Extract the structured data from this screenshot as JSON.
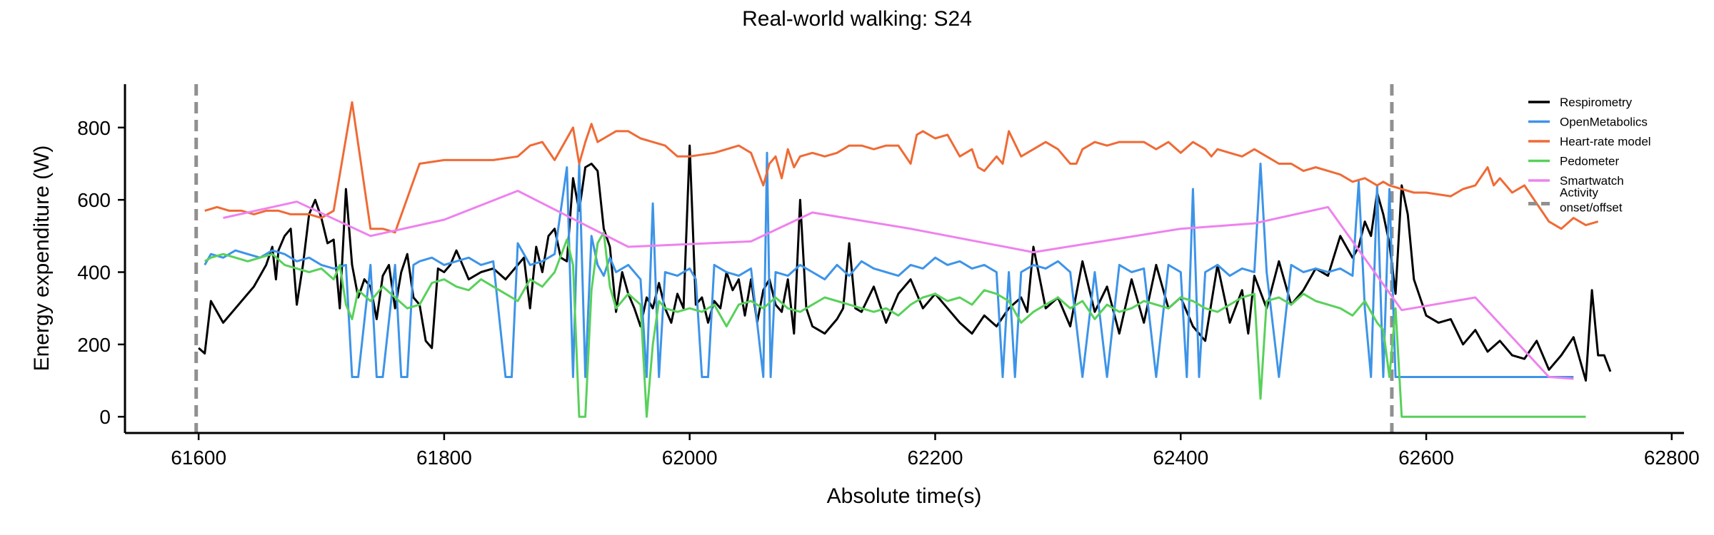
{
  "chart_data": {
    "type": "line",
    "title": "Real-world walking: S24",
    "xlabel": "Absolute time(s)",
    "ylabel": "Energy expenditure (W)",
    "xlim": [
      61540,
      62810
    ],
    "ylim": [
      -45,
      920
    ],
    "xticks": [
      61600,
      61800,
      62000,
      62200,
      62400,
      62600,
      62800
    ],
    "yticks": [
      0,
      200,
      400,
      600,
      800
    ],
    "grid": false,
    "legend_position": "top-right",
    "series": [
      {
        "name": "Respirometry",
        "color": "#000000",
        "x": [
          61600,
          61605,
          61610,
          61620,
          61630,
          61640,
          61645,
          61650,
          61655,
          61660,
          61663,
          61665,
          61670,
          61675,
          61680,
          61685,
          61690,
          61695,
          61700,
          61705,
          61710,
          61715,
          61720,
          61725,
          61730,
          61735,
          61740,
          61745,
          61750,
          61755,
          61760,
          61765,
          61770,
          61775,
          61780,
          61785,
          61790,
          61795,
          61800,
          61805,
          61810,
          61815,
          61820,
          61830,
          61840,
          61850,
          61860,
          61865,
          61870,
          61875,
          61880,
          61885,
          61890,
          61895,
          61900,
          61905,
          61910,
          61915,
          61920,
          61925,
          61930,
          61935,
          61940,
          61945,
          61950,
          61955,
          61960,
          61965,
          61970,
          61975,
          61980,
          61985,
          61990,
          61995,
          62000,
          62005,
          62010,
          62015,
          62020,
          62025,
          62030,
          62035,
          62040,
          62045,
          62050,
          62055,
          62060,
          62065,
          62070,
          62075,
          62080,
          62085,
          62090,
          62095,
          62100,
          62110,
          62120,
          62125,
          62130,
          62135,
          62140,
          62150,
          62160,
          62170,
          62180,
          62190,
          62200,
          62210,
          62220,
          62230,
          62240,
          62250,
          62260,
          62270,
          62275,
          62280,
          62290,
          62300,
          62310,
          62320,
          62330,
          62340,
          62350,
          62360,
          62370,
          62380,
          62390,
          62400,
          62410,
          62420,
          62430,
          62440,
          62450,
          62455,
          62460,
          62470,
          62480,
          62490,
          62500,
          62510,
          62520,
          62530,
          62540,
          62545,
          62550,
          62555,
          62560,
          62565,
          62570,
          62575,
          62580,
          62585,
          62590,
          62600,
          62610,
          62620,
          62630,
          62640,
          62650,
          62660,
          62670,
          62680,
          62690,
          62700,
          62710,
          62720,
          62725,
          62730,
          62735,
          62740,
          62745,
          62750
        ],
        "values": [
          190,
          175,
          320,
          260,
          300,
          340,
          360,
          390,
          420,
          470,
          380,
          460,
          500,
          520,
          310,
          420,
          560,
          600,
          550,
          480,
          490,
          300,
          630,
          420,
          330,
          380,
          360,
          270,
          390,
          420,
          300,
          400,
          450,
          330,
          310,
          210,
          190,
          410,
          400,
          420,
          460,
          420,
          380,
          400,
          410,
          380,
          420,
          440,
          300,
          470,
          400,
          500,
          520,
          440,
          430,
          660,
          570,
          690,
          700,
          680,
          520,
          470,
          290,
          400,
          340,
          300,
          250,
          330,
          300,
          370,
          300,
          260,
          340,
          300,
          750,
          310,
          330,
          260,
          320,
          300,
          400,
          350,
          380,
          280,
          380,
          260,
          350,
          380,
          310,
          290,
          380,
          230,
          600,
          300,
          250,
          230,
          270,
          300,
          480,
          300,
          290,
          360,
          260,
          340,
          380,
          300,
          340,
          300,
          260,
          230,
          280,
          250,
          300,
          330,
          290,
          470,
          300,
          330,
          250,
          430,
          290,
          360,
          230,
          380,
          260,
          420,
          300,
          330,
          250,
          210,
          420,
          260,
          350,
          230,
          390,
          300,
          430,
          310,
          350,
          410,
          390,
          500,
          440,
          470,
          540,
          500,
          620,
          560,
          480,
          340,
          640,
          560,
          380,
          280,
          260,
          270,
          200,
          240,
          180,
          210,
          170,
          160,
          210,
          130,
          170,
          220,
          160,
          100,
          350,
          170,
          170,
          125
        ]
      },
      {
        "name": "OpenMetabolics",
        "color": "#3d94e8",
        "x": [
          61605,
          61610,
          61620,
          61630,
          61640,
          61650,
          61660,
          61670,
          61680,
          61690,
          61700,
          61710,
          61720,
          61725,
          61730,
          61740,
          61745,
          61750,
          61760,
          61765,
          61770,
          61775,
          61780,
          61790,
          61800,
          61810,
          61820,
          61830,
          61840,
          61850,
          61855,
          61860,
          61870,
          61880,
          61890,
          61900,
          61905,
          61910,
          61915,
          61920,
          61925,
          61930,
          61935,
          61940,
          61950,
          61960,
          61965,
          61970,
          61975,
          61980,
          61990,
          62000,
          62005,
          62010,
          62015,
          62020,
          62030,
          62040,
          62050,
          62060,
          62063,
          62066,
          62070,
          62080,
          62090,
          62100,
          62110,
          62120,
          62130,
          62140,
          62150,
          62160,
          62170,
          62180,
          62190,
          62200,
          62210,
          62220,
          62230,
          62240,
          62250,
          62255,
          62260,
          62265,
          62270,
          62280,
          62290,
          62300,
          62310,
          62320,
          62330,
          62340,
          62350,
          62360,
          62370,
          62380,
          62390,
          62400,
          62405,
          62410,
          62415,
          62420,
          62430,
          62440,
          62450,
          62460,
          62465,
          62470,
          62480,
          62490,
          62500,
          62510,
          62520,
          62530,
          62540,
          62545,
          62550,
          62555,
          62560,
          62565,
          62570,
          62575,
          62580,
          62585,
          62590,
          62600,
          62650,
          62700,
          62720
        ],
        "values": [
          420,
          450,
          440,
          460,
          450,
          440,
          460,
          450,
          430,
          440,
          420,
          410,
          420,
          110,
          110,
          420,
          110,
          110,
          420,
          110,
          110,
          420,
          430,
          440,
          420,
          430,
          440,
          420,
          430,
          110,
          110,
          480,
          420,
          430,
          450,
          690,
          110,
          700,
          110,
          500,
          420,
          390,
          440,
          400,
          420,
          380,
          110,
          590,
          110,
          400,
          390,
          410,
          380,
          110,
          110,
          420,
          400,
          390,
          410,
          110,
          730,
          110,
          400,
          390,
          420,
          400,
          380,
          420,
          390,
          430,
          410,
          400,
          390,
          420,
          410,
          440,
          420,
          430,
          410,
          420,
          400,
          110,
          400,
          110,
          400,
          420,
          410,
          430,
          400,
          110,
          400,
          110,
          420,
          400,
          410,
          110,
          420,
          400,
          110,
          630,
          110,
          400,
          420,
          390,
          410,
          400,
          700,
          400,
          110,
          420,
          400,
          410,
          400,
          410,
          390,
          650,
          300,
          110,
          640,
          110,
          630,
          110,
          110,
          110,
          110,
          110,
          110,
          110,
          110
        ]
      },
      {
        "name": "Heart-rate model",
        "color": "#f06a35",
        "x": [
          61605,
          61615,
          61625,
          61635,
          61645,
          61655,
          61665,
          61675,
          61690,
          61700,
          61710,
          61725,
          61740,
          61750,
          61760,
          61780,
          61800,
          61820,
          61840,
          61860,
          61870,
          61880,
          61890,
          61900,
          61905,
          61910,
          61915,
          61920,
          61925,
          61930,
          61940,
          61950,
          61960,
          61970,
          61980,
          61990,
          62000,
          62020,
          62030,
          62040,
          62050,
          62060,
          62065,
          62070,
          62075,
          62080,
          62085,
          62090,
          62100,
          62110,
          62120,
          62130,
          62140,
          62150,
          62160,
          62170,
          62180,
          62185,
          62190,
          62200,
          62210,
          62220,
          62230,
          62235,
          62240,
          62250,
          62255,
          62260,
          62270,
          62280,
          62290,
          62300,
          62310,
          62315,
          62320,
          62330,
          62340,
          62350,
          62360,
          62370,
          62380,
          62390,
          62400,
          62410,
          62420,
          62425,
          62430,
          62440,
          62450,
          62460,
          62470,
          62480,
          62490,
          62500,
          62510,
          62520,
          62530,
          62540,
          62550,
          62560,
          62565,
          62570,
          62580,
          62590,
          62600,
          62620,
          62630,
          62640,
          62650,
          62655,
          62660,
          62670,
          62680,
          62690,
          62700,
          62710,
          62720,
          62730,
          62740
        ],
        "values": [
          570,
          580,
          570,
          570,
          560,
          570,
          570,
          560,
          560,
          550,
          570,
          870,
          520,
          520,
          510,
          700,
          710,
          710,
          710,
          720,
          750,
          760,
          710,
          770,
          800,
          700,
          760,
          810,
          760,
          770,
          790,
          790,
          770,
          760,
          750,
          720,
          720,
          730,
          740,
          750,
          730,
          640,
          700,
          720,
          660,
          740,
          690,
          720,
          730,
          720,
          730,
          750,
          750,
          740,
          750,
          750,
          700,
          780,
          790,
          770,
          780,
          720,
          740,
          690,
          680,
          720,
          700,
          790,
          720,
          740,
          760,
          740,
          700,
          700,
          740,
          760,
          750,
          760,
          760,
          760,
          740,
          760,
          730,
          760,
          740,
          720,
          740,
          730,
          720,
          740,
          720,
          700,
          700,
          680,
          690,
          680,
          670,
          650,
          660,
          640,
          650,
          640,
          630,
          620,
          620,
          610,
          630,
          640,
          690,
          640,
          660,
          620,
          640,
          590,
          540,
          520,
          550,
          530,
          540
        ]
      },
      {
        "name": "Pedometer",
        "color": "#58d15a",
        "x": [
          61605,
          61610,
          61620,
          61630,
          61640,
          61650,
          61660,
          61670,
          61680,
          61690,
          61700,
          61710,
          61715,
          61720,
          61725,
          61730,
          61740,
          61750,
          61760,
          61770,
          61780,
          61790,
          61800,
          61810,
          61820,
          61830,
          61840,
          61850,
          61860,
          61870,
          61880,
          61890,
          61900,
          61905,
          61910,
          61915,
          61920,
          61925,
          61930,
          61935,
          61940,
          61950,
          61960,
          61965,
          61970,
          61975,
          61980,
          61990,
          62000,
          62010,
          62020,
          62030,
          62040,
          62050,
          62060,
          62070,
          62080,
          62090,
          62100,
          62110,
          62120,
          62130,
          62140,
          62150,
          62160,
          62170,
          62180,
          62190,
          62200,
          62210,
          62220,
          62230,
          62240,
          62250,
          62260,
          62270,
          62280,
          62290,
          62300,
          62310,
          62320,
          62330,
          62340,
          62350,
          62360,
          62370,
          62380,
          62390,
          62400,
          62410,
          62420,
          62430,
          62440,
          62450,
          62460,
          62465,
          62470,
          62480,
          62490,
          62500,
          62510,
          62520,
          62530,
          62540,
          62550,
          62560,
          62565,
          62570,
          62575,
          62580,
          62585,
          62600,
          62650,
          62700,
          62730
        ],
        "values": [
          430,
          440,
          450,
          440,
          430,
          440,
          450,
          420,
          410,
          400,
          410,
          380,
          420,
          310,
          270,
          350,
          320,
          360,
          330,
          300,
          310,
          370,
          380,
          360,
          350,
          380,
          360,
          340,
          320,
          380,
          360,
          400,
          490,
          420,
          0,
          0,
          350,
          480,
          510,
          360,
          300,
          340,
          310,
          0,
          200,
          320,
          300,
          290,
          300,
          290,
          310,
          250,
          310,
          320,
          300,
          330,
          300,
          290,
          310,
          330,
          320,
          310,
          300,
          290,
          300,
          280,
          310,
          330,
          340,
          320,
          330,
          310,
          350,
          340,
          320,
          260,
          290,
          310,
          330,
          300,
          320,
          270,
          310,
          290,
          300,
          320,
          310,
          300,
          330,
          320,
          300,
          290,
          310,
          330,
          340,
          50,
          320,
          330,
          310,
          340,
          320,
          310,
          300,
          280,
          320,
          260,
          240,
          110,
          300,
          0,
          0,
          0,
          0,
          0,
          0
        ]
      },
      {
        "name": "Smartwatch",
        "color": "#ee82ee",
        "x": [
          61620,
          61680,
          61740,
          61800,
          61860,
          61950,
          62050,
          62100,
          62180,
          62280,
          62400,
          62460,
          62520,
          62580,
          62640,
          62700,
          62720
        ],
        "values": [
          550,
          595,
          500,
          545,
          625,
          470,
          485,
          565,
          520,
          455,
          520,
          535,
          580,
          295,
          330,
          110,
          105
        ]
      }
    ],
    "annotations": {
      "name": "Activity\nonset/offset",
      "color": "#909090",
      "x": [
        61598,
        62572
      ]
    }
  }
}
